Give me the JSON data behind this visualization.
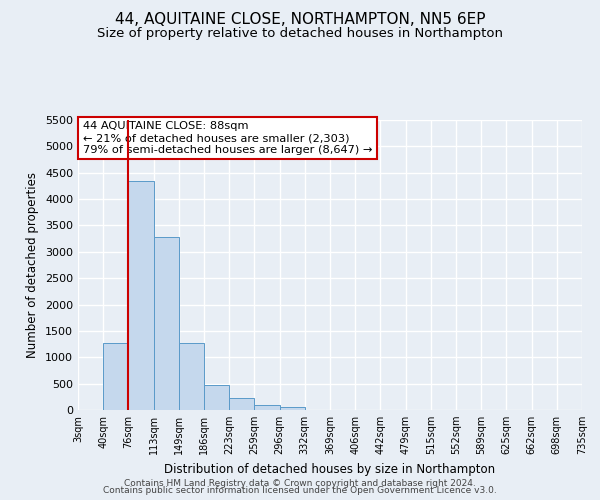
{
  "title": "44, AQUITAINE CLOSE, NORTHAMPTON, NN5 6EP",
  "subtitle": "Size of property relative to detached houses in Northampton",
  "xlabel": "Distribution of detached houses by size in Northampton",
  "ylabel": "Number of detached properties",
  "footer_line1": "Contains HM Land Registry data © Crown copyright and database right 2024.",
  "footer_line2": "Contains public sector information licensed under the Open Government Licence v3.0.",
  "bin_labels": [
    "3sqm",
    "40sqm",
    "76sqm",
    "113sqm",
    "149sqm",
    "186sqm",
    "223sqm",
    "259sqm",
    "296sqm",
    "332sqm",
    "369sqm",
    "406sqm",
    "442sqm",
    "479sqm",
    "515sqm",
    "552sqm",
    "589sqm",
    "625sqm",
    "662sqm",
    "698sqm",
    "735sqm"
  ],
  "bar_values": [
    0,
    1270,
    4350,
    3280,
    1270,
    480,
    230,
    90,
    55,
    0,
    0,
    0,
    0,
    0,
    0,
    0,
    0,
    0,
    0,
    0
  ],
  "bar_color": "#c5d8ed",
  "bar_edge_color": "#5a9ac9",
  "vline_x": 2,
  "vline_color": "#cc0000",
  "ylim": [
    0,
    5500
  ],
  "yticks": [
    0,
    500,
    1000,
    1500,
    2000,
    2500,
    3000,
    3500,
    4000,
    4500,
    5000,
    5500
  ],
  "annotation_title": "44 AQUITAINE CLOSE: 88sqm",
  "annotation_line1": "← 21% of detached houses are smaller (2,303)",
  "annotation_line2": "79% of semi-detached houses are larger (8,647) →",
  "annotation_box_color": "#ffffff",
  "annotation_box_edge": "#cc0000",
  "bg_color": "#e8eef5",
  "plot_bg_color": "#e8eef5",
  "grid_color": "#ffffff",
  "title_fontsize": 11,
  "subtitle_fontsize": 9.5
}
